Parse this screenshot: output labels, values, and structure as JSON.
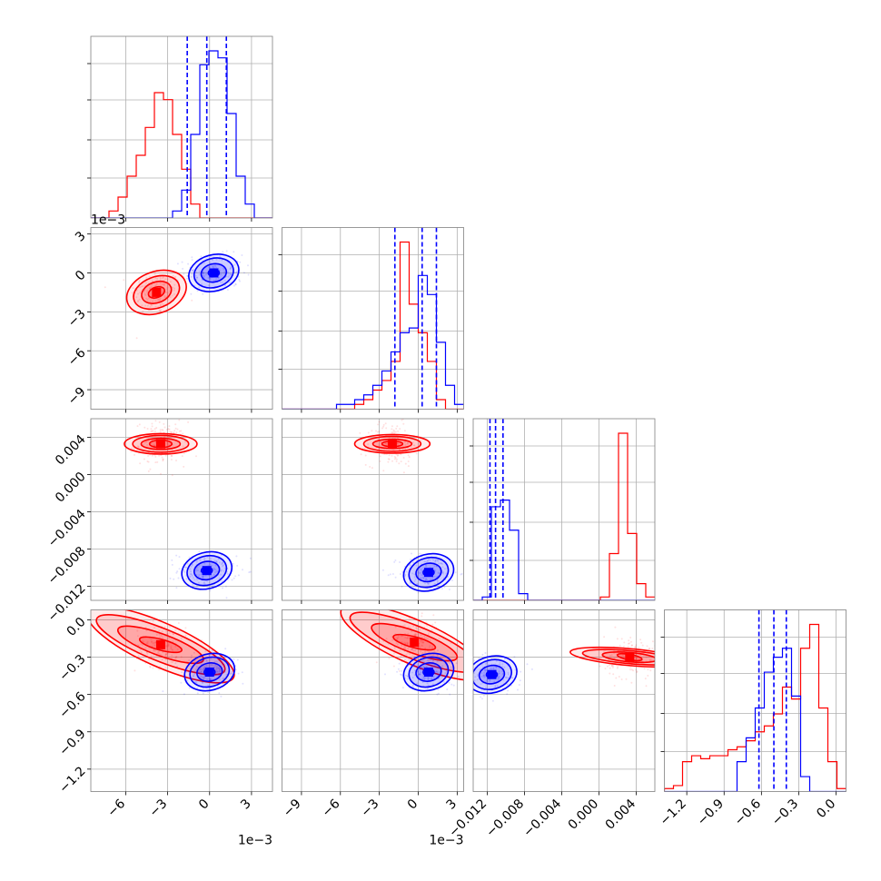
{
  "chart_data": {
    "type": "corner",
    "title": "",
    "parameters": [
      {
        "range": [
          -8.5,
          4.5
        ],
        "ticks": [
          -6,
          -3,
          0,
          3
        ],
        "tick_labels": [
          "−6",
          "−3",
          "0",
          "3"
        ],
        "offset_text": "1e−3"
      },
      {
        "range": [
          -10.5,
          3.5
        ],
        "ticks": [
          -9,
          -6,
          -3,
          0,
          3
        ],
        "tick_labels": [
          "−9",
          "−6",
          "−3",
          "0",
          "3"
        ],
        "offset_text": "1e−3"
      },
      {
        "range": [
          -0.0135,
          0.006
        ],
        "ticks": [
          -0.012,
          -0.008,
          -0.004,
          0.0,
          0.004
        ],
        "tick_labels": [
          "−0.012",
          "−0.008",
          "−0.004",
          "0.000",
          "0.004"
        ],
        "offset_text": ""
      },
      {
        "range": [
          -1.38,
          0.08
        ],
        "ticks": [
          -1.2,
          -0.9,
          -0.6,
          -0.3,
          0.0
        ],
        "tick_labels": [
          "−1.2",
          "−0.9",
          "−0.6",
          "−0.3",
          "0.0"
        ],
        "offset_text": ""
      }
    ],
    "series": [
      {
        "color": "#ff0000",
        "hist1d": [
          {
            "edges_start": -8.5,
            "bin_width": 0.65,
            "counts": [
              0,
              0,
              1,
              3,
              6,
              9,
              13,
              18,
              17,
              12,
              7,
              2,
              0,
              0,
              0,
              0,
              0,
              0,
              0,
              0
            ]
          },
          {
            "edges_start": -10.5,
            "bin_width": 0.7,
            "counts": [
              0,
              0,
              0,
              0,
              0,
              0,
              0,
              0,
              1,
              2,
              4,
              6,
              10,
              35,
              22,
              16,
              10,
              2,
              0,
              0
            ]
          },
          {
            "edges_start": -0.0135,
            "bin_width": 0.000975,
            "counts": [
              0,
              0,
              0,
              0,
              0,
              0,
              0,
              0,
              0,
              0,
              0,
              0,
              0,
              0,
              1,
              14,
              50,
              20,
              5,
              1
            ]
          },
          {
            "edges_start": -1.38,
            "bin_width": 0.073,
            "counts": [
              1,
              2,
              10,
              12,
              11,
              12,
              12,
              14,
              15,
              17,
              20,
              22,
              26,
              35,
              31,
              48,
              56,
              28,
              10,
              1
            ]
          }
        ],
        "peaks": [
          {
            "x": -3.8,
            "y": -1.5,
            "ellipses": [
              [
                0.6,
                0.4,
                20
              ],
              [
                1.1,
                0.8,
                20
              ],
              [
                1.7,
                1.2,
                20
              ],
              [
                2.2,
                1.6,
                20
              ]
            ]
          },
          {
            "x": -3.5,
            "y": 0.0033,
            "ellipses": [
              [
                0.8,
                0.0004,
                0
              ],
              [
                1.4,
                0.0006,
                0
              ],
              [
                2.0,
                0.0009,
                0
              ],
              [
                2.6,
                0.0011,
                0
              ]
            ]
          },
          {
            "x": -2.0,
            "y": 0.0033,
            "ellipses": [
              [
                0.8,
                0.0003,
                0
              ],
              [
                1.5,
                0.0005,
                0
              ],
              [
                2.2,
                0.0008,
                0
              ],
              [
                2.9,
                0.001,
                0
              ]
            ]
          },
          {
            "x": 0.0033,
            "y": -0.3,
            "ellipses": [
              [
                0.0003,
                0.1,
                80
              ],
              [
                0.0005,
                0.22,
                85
              ],
              [
                0.0007,
                0.38,
                85
              ],
              [
                0.0009,
                0.48,
                85
              ]
            ]
          }
        ]
      },
      {
        "color": "#0000ff",
        "hist1d": [
          {
            "edges_start": -8.5,
            "bin_width": 0.65,
            "counts": [
              0,
              0,
              0,
              0,
              0,
              0,
              0,
              0,
              0,
              1,
              4,
              12,
              22,
              24,
              23,
              15,
              6,
              2,
              0,
              0
            ]
          },
          {
            "edges_start": -10.5,
            "bin_width": 0.7,
            "counts": [
              0,
              0,
              0,
              0,
              0,
              0,
              1,
              1,
              2,
              3,
              5,
              8,
              12,
              16,
              17,
              28,
              24,
              14,
              5,
              1
            ]
          },
          {
            "edges_start": -0.0135,
            "bin_width": 0.000975,
            "counts": [
              0,
              1,
              28,
              30,
              21,
              2,
              0,
              0,
              0,
              0,
              0,
              0,
              0,
              0,
              0,
              0,
              0,
              0,
              0,
              0
            ]
          },
          {
            "edges_start": -1.38,
            "bin_width": 0.073,
            "counts": [
              0,
              0,
              0,
              0,
              0,
              0,
              0,
              0,
              10,
              18,
              28,
              40,
              45,
              48,
              32,
              5,
              0,
              0,
              0,
              0
            ]
          }
        ],
        "quantile_lines": [
          [
            -1.6,
            -0.2,
            1.2
          ],
          [
            -1.8,
            0.3,
            1.4
          ],
          [
            -0.0117,
            -0.0111,
            -0.0103
          ],
          [
            -0.62,
            -0.5,
            -0.4
          ]
        ]
      }
    ]
  }
}
